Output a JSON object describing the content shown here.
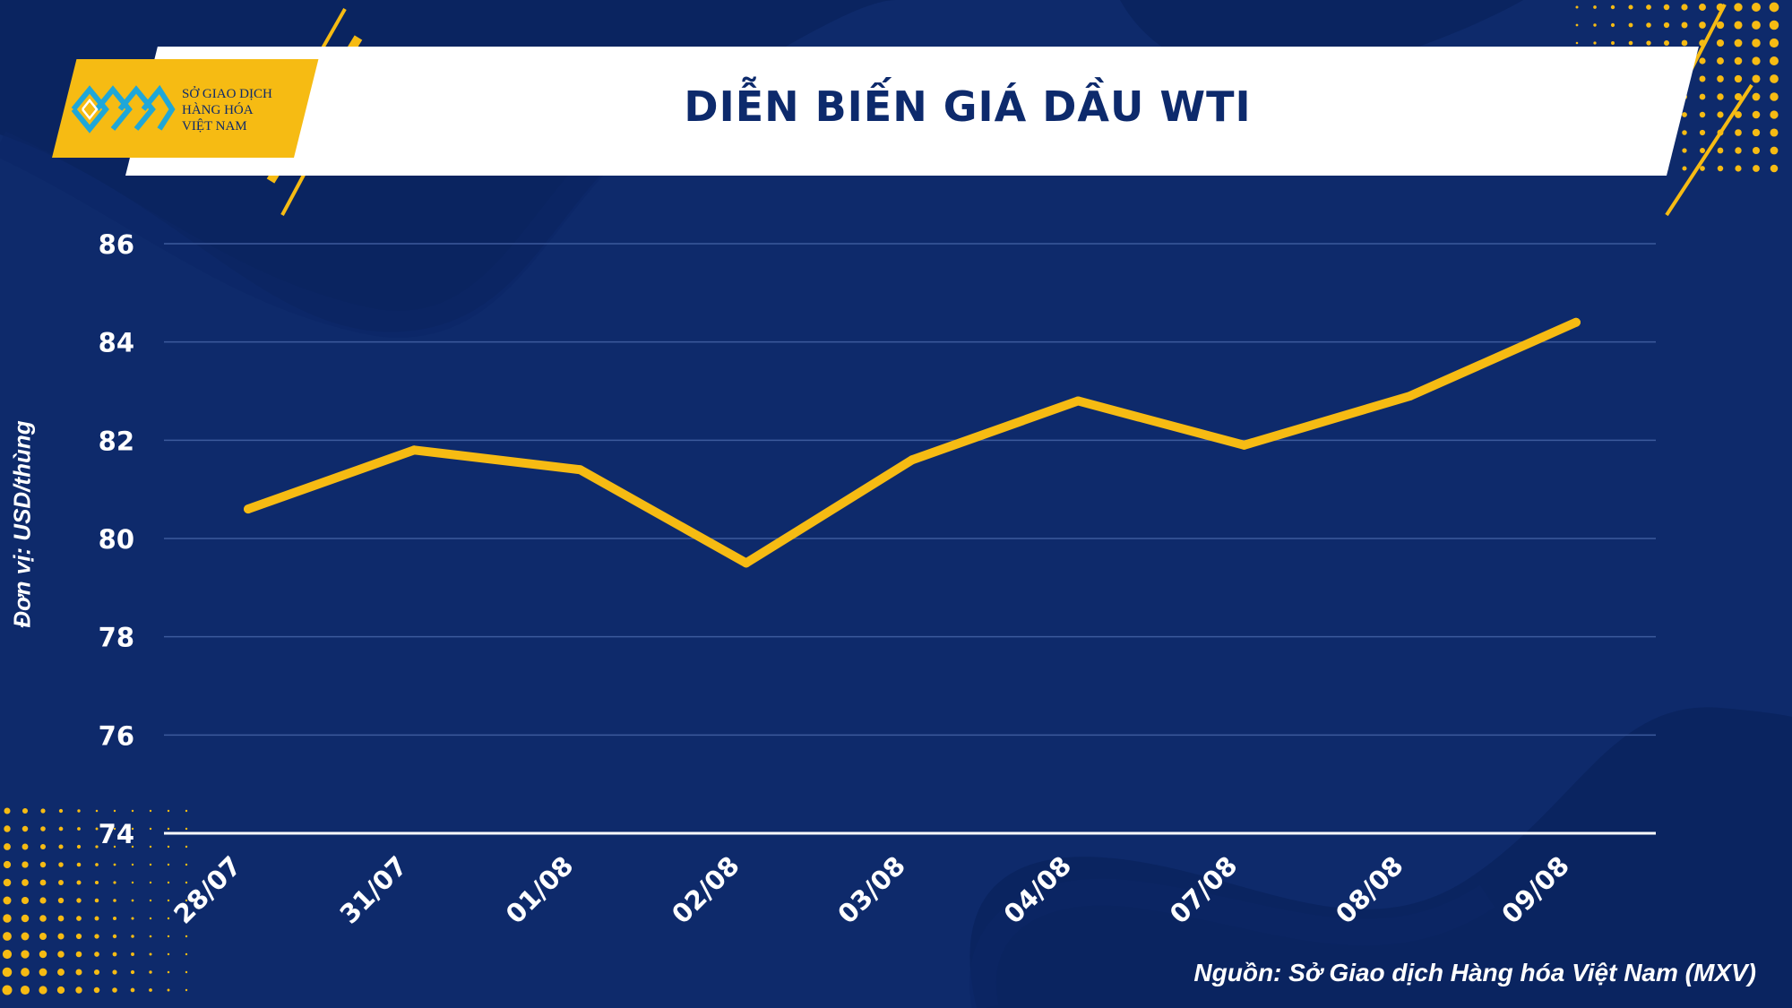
{
  "header": {
    "title": "DIỄN BIẾN GIÁ DẦU WTI"
  },
  "logo": {
    "lines": [
      "SỞ GIAO DỊCH",
      "HÀNG HÓA",
      "VIỆT NAM"
    ]
  },
  "source_note": "Nguồn: Sở Giao dịch Hàng hóa Việt Nam (MXV)",
  "colors": {
    "background": "#0e2a6b",
    "accent": "#f6bb13",
    "text": "#ffffff"
  },
  "chart_data": {
    "type": "line",
    "title": "DIỄN BIẾN GIÁ DẦU WTI",
    "xlabel": "",
    "ylabel": "Đơn vị: USD/thùng",
    "categories": [
      "28/07",
      "31/07",
      "01/08",
      "02/08",
      "03/08",
      "04/08",
      "07/08",
      "08/08",
      "09/08"
    ],
    "series": [
      {
        "values": [
          80.6,
          81.8,
          81.4,
          79.5,
          81.6,
          82.8,
          81.9,
          82.9,
          84.4
        ]
      }
    ],
    "ylim": [
      74,
      86
    ],
    "yticks": [
      74,
      76,
      78,
      80,
      82,
      84,
      86
    ],
    "grid": true,
    "legend": "none"
  }
}
